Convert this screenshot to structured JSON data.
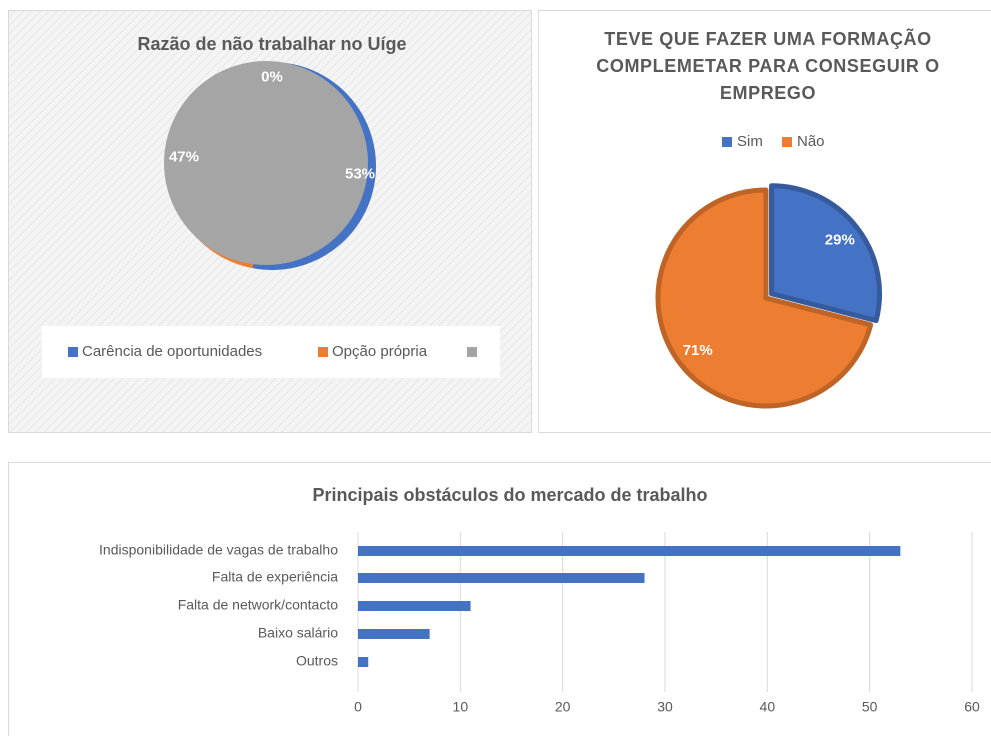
{
  "chart_data": [
    {
      "type": "pie",
      "title": "Razão de não trabalhar no Uíge",
      "categories": [
        "Carência de oportunidades",
        "Opção própria",
        null
      ],
      "values": [
        53,
        47,
        0
      ],
      "value_labels": [
        "53%",
        "47%",
        "0%"
      ],
      "colors": [
        "#4472c4",
        "#ed7d31",
        "#a5a5a5"
      ]
    },
    {
      "type": "pie",
      "title": "TEVE QUE FAZER UMA FORMAÇÃO COMPLEMETAR PARA CONSEGUIR O EMPREGO",
      "categories": [
        "Sim",
        "Não"
      ],
      "values": [
        29,
        71
      ],
      "value_labels": [
        "29%",
        "71%"
      ],
      "colors": [
        "#4472c4",
        "#ed7d31"
      ]
    },
    {
      "type": "bar",
      "orientation": "horizontal",
      "title": "Principais obstáculos do mercado de trabalho",
      "categories": [
        "Indisponibilidade de vagas de trabalho",
        "Falta de experiência",
        "Falta de network/contacto",
        "Baixo salário",
        "Outros"
      ],
      "values": [
        53,
        28,
        11,
        7,
        1
      ],
      "color": "#4472c4",
      "xlim": [
        0,
        60
      ],
      "xticks": [
        0,
        10,
        20,
        30,
        40,
        50,
        60
      ],
      "grid": true
    }
  ]
}
